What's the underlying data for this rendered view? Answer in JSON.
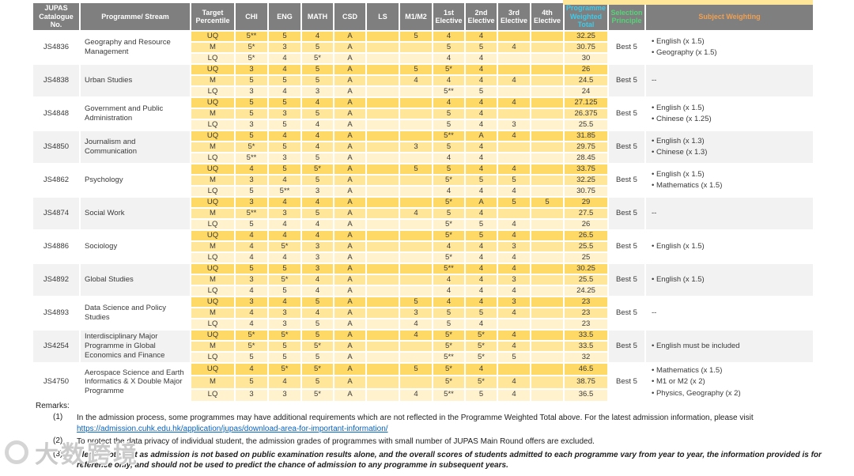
{
  "table": {
    "columns": [
      "JUPAS Catalogue No.",
      "Programme/ Stream",
      "Target Percentile",
      "CHI",
      "ENG",
      "MATH",
      "CSD",
      "LS",
      "M1/M2",
      "1st Elective",
      "2nd Elective",
      "3rd Elective",
      "4th Elective",
      "Programme Weighted Total",
      "Selection Principle",
      "Subject Weighting"
    ],
    "column_keys": [
      "percentile",
      "chi",
      "eng",
      "math",
      "csd",
      "ls",
      "m1m2",
      "elective1",
      "elective2",
      "elective3",
      "elective4",
      "weighted-total"
    ],
    "colors": {
      "header_bg": "#7F7F7F",
      "header_text": "#FFFFFF",
      "weighted_total_header": "#3FC9E8",
      "selection_principle_header": "#55D377",
      "subject_weighting_header": "#F0A052",
      "uq_row": "#FFD966",
      "m_row": "#FFE699",
      "lq_row": "#FFF2CC",
      "alt_block_bg": "#F2F2F2",
      "link": "#0563C1"
    },
    "percentile_labels": [
      "UQ",
      "M",
      "LQ"
    ],
    "programmes": [
      {
        "code": "JS4836",
        "name": "Geography and Resource Management",
        "selection": "Best 5",
        "weighting": [
          "English (x 1.5)",
          "Geography (x 1.5)"
        ],
        "rows": [
          [
            "UQ",
            "5**",
            "5",
            "4",
            "A",
            "",
            "5",
            "4",
            "4",
            "",
            "",
            "32.25"
          ],
          [
            "M",
            "5*",
            "3",
            "5",
            "A",
            "",
            "",
            "5",
            "5",
            "4",
            "",
            "30.75"
          ],
          [
            "LQ",
            "5*",
            "4",
            "5*",
            "A",
            "",
            "",
            "4",
            "4",
            "",
            "",
            "30"
          ]
        ]
      },
      {
        "code": "JS4838",
        "name": "Urban Studies",
        "selection": "Best 5",
        "weighting": "--",
        "rows": [
          [
            "UQ",
            "3",
            "4",
            "5",
            "A",
            "",
            "5",
            "5*",
            "4",
            "",
            "",
            "26"
          ],
          [
            "M",
            "5",
            "5",
            "5",
            "A",
            "",
            "4",
            "4",
            "4",
            "4",
            "",
            "24.5"
          ],
          [
            "LQ",
            "3",
            "4",
            "3",
            "A",
            "",
            "",
            "5**",
            "5",
            "",
            "",
            "24"
          ]
        ]
      },
      {
        "code": "JS4848",
        "name": "Government and Public Administration",
        "selection": "Best 5",
        "weighting": [
          "English (x 1.5)",
          "Chinese (x 1.25)"
        ],
        "rows": [
          [
            "UQ",
            "5",
            "5",
            "4",
            "A",
            "",
            "",
            "4",
            "4",
            "4",
            "",
            "27.125"
          ],
          [
            "M",
            "5",
            "3",
            "5",
            "A",
            "",
            "",
            "5",
            "4",
            "",
            "",
            "26.375"
          ],
          [
            "LQ",
            "3",
            "5",
            "4",
            "A",
            "",
            "",
            "5",
            "4",
            "3",
            "",
            "25.5"
          ]
        ]
      },
      {
        "code": "JS4850",
        "name": "Journalism and Communication",
        "selection": "Best 5",
        "weighting": [
          "English (x 1.3)",
          "Chinese (x 1.3)"
        ],
        "rows": [
          [
            "UQ",
            "5",
            "4",
            "4",
            "A",
            "",
            "",
            "5**",
            "A",
            "4",
            "",
            "31.85"
          ],
          [
            "M",
            "5*",
            "5",
            "4",
            "A",
            "",
            "3",
            "5",
            "4",
            "",
            "",
            "29.75"
          ],
          [
            "LQ",
            "5**",
            "3",
            "5",
            "A",
            "",
            "",
            "4",
            "4",
            "",
            "",
            "28.45"
          ]
        ]
      },
      {
        "code": "JS4862",
        "name": "Psychology",
        "selection": "Best 5",
        "weighting": [
          "English (x 1.5)",
          "Mathematics (x 1.5)"
        ],
        "rows": [
          [
            "UQ",
            "4",
            "5",
            "5*",
            "A",
            "",
            "5",
            "5",
            "4",
            "4",
            "",
            "33.75"
          ],
          [
            "M",
            "3",
            "4",
            "5",
            "A",
            "",
            "",
            "5*",
            "5",
            "5",
            "",
            "32.25"
          ],
          [
            "LQ",
            "5",
            "5**",
            "3",
            "A",
            "",
            "",
            "4",
            "4",
            "4",
            "",
            "30.75"
          ]
        ]
      },
      {
        "code": "JS4874",
        "name": "Social Work",
        "selection": "Best 5",
        "weighting": "--",
        "rows": [
          [
            "UQ",
            "3",
            "4",
            "4",
            "A",
            "",
            "",
            "5*",
            "A",
            "5",
            "5",
            "29"
          ],
          [
            "M",
            "5**",
            "3",
            "5",
            "A",
            "",
            "4",
            "5",
            "4",
            "",
            "",
            "27.5"
          ],
          [
            "LQ",
            "5",
            "4",
            "4",
            "A",
            "",
            "",
            "5*",
            "5",
            "4",
            "",
            "26"
          ]
        ]
      },
      {
        "code": "JS4886",
        "name": "Sociology",
        "selection": "Best 5",
        "weighting": [
          "English (x 1.5)"
        ],
        "rows": [
          [
            "UQ",
            "4",
            "4",
            "4",
            "A",
            "",
            "",
            "5*",
            "5",
            "4",
            "",
            "26.5"
          ],
          [
            "M",
            "4",
            "5*",
            "3",
            "A",
            "",
            "",
            "4",
            "4",
            "3",
            "",
            "25.5"
          ],
          [
            "LQ",
            "4",
            "4",
            "3",
            "A",
            "",
            "",
            "5*",
            "4",
            "4",
            "",
            "25"
          ]
        ]
      },
      {
        "code": "JS4892",
        "name": "Global Studies",
        "selection": "Best 5",
        "weighting": [
          "English (x 1.5)"
        ],
        "rows": [
          [
            "UQ",
            "5",
            "5",
            "3",
            "A",
            "",
            "",
            "5**",
            "4",
            "4",
            "",
            "30.25"
          ],
          [
            "M",
            "3",
            "5*",
            "4",
            "A",
            "",
            "",
            "4",
            "4",
            "3",
            "",
            "25.5"
          ],
          [
            "LQ",
            "4",
            "5",
            "4",
            "A",
            "",
            "",
            "4",
            "4",
            "4",
            "",
            "24.25"
          ]
        ]
      },
      {
        "code": "JS4893",
        "name": "Data Science and Policy Studies",
        "selection": "Best 5",
        "weighting": "--",
        "rows": [
          [
            "UQ",
            "3",
            "4",
            "5",
            "A",
            "",
            "5",
            "4",
            "4",
            "3",
            "",
            "23"
          ],
          [
            "M",
            "4",
            "3",
            "4",
            "A",
            "",
            "3",
            "5",
            "5",
            "4",
            "",
            "23"
          ],
          [
            "LQ",
            "4",
            "3",
            "5",
            "A",
            "",
            "4",
            "5",
            "4",
            "",
            "",
            "23"
          ]
        ]
      },
      {
        "code": "JS4254",
        "name": "Interdisciplinary Major Programme in Global Economics and Finance",
        "selection": "Best 5",
        "weighting": [
          "English must be included"
        ],
        "rows": [
          [
            "UQ",
            "5*",
            "5*",
            "5",
            "A",
            "",
            "4",
            "5*",
            "5*",
            "4",
            "",
            "33.5"
          ],
          [
            "M",
            "5*",
            "5",
            "5*",
            "A",
            "",
            "",
            "5*",
            "5*",
            "4",
            "",
            "33.5"
          ],
          [
            "LQ",
            "5",
            "5",
            "5",
            "A",
            "",
            "",
            "5**",
            "5*",
            "5",
            "",
            "32"
          ]
        ]
      },
      {
        "code": "JS4750",
        "name": "Aerospace Science and Earth Informatics & X Double Major Programme",
        "selection": "Best 5",
        "weighting": [
          "Mathematics (x 1.5)",
          "M1 or M2 (x 2)",
          "Physics, Geography (x 2)"
        ],
        "rows": [
          [
            "UQ",
            "4",
            "5*",
            "5*",
            "A",
            "",
            "5",
            "5*",
            "4",
            "",
            "",
            "46.5"
          ],
          [
            "M",
            "5",
            "4",
            "5",
            "A",
            "",
            "",
            "5*",
            "5*",
            "4",
            "",
            "38.75"
          ],
          [
            "LQ",
            "3",
            "3",
            "5*",
            "A",
            "",
            "4",
            "5**",
            "5",
            "4",
            "",
            "36.5"
          ]
        ]
      }
    ]
  },
  "remarks": {
    "title": "Remarks:",
    "items": [
      {
        "num": "(1)",
        "text": "In the admission process, some programmes may have additional requirements which are not reflected in the Programme Weighted Total above. For the latest admission information, please visit",
        "link": "https://admission.cuhk.edu.hk/application/jupas/download-area-for-important-information/"
      },
      {
        "num": "(2)",
        "text": "To protect the data privacy of individual student, the admission grades of programmes with small number of JUPAS Main Round offers are excluded."
      },
      {
        "num": "(3)",
        "text": "Please note that as admission is not based on public examination results alone, and the overall scores of students admitted to each programme vary from year to year, the information provided is for reference only, and should not be used to predict the chance of admission to any programme in subsequent years."
      }
    ]
  },
  "watermark": {
    "text": "大数跨境"
  }
}
